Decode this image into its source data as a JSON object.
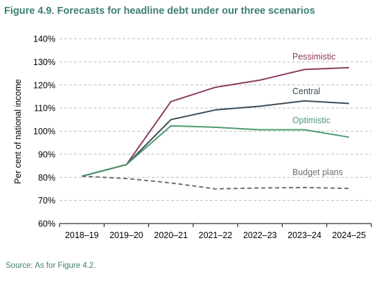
{
  "title": "Figure 4.9. Forecasts for headline debt under our three scenarios",
  "source": "Source: As for Figure 4.2.",
  "chart_data": {
    "type": "line",
    "ylabel": "Per cent of national income",
    "xlabel": "",
    "ylim": [
      60,
      140
    ],
    "yticks": [
      "60%",
      "70%",
      "80%",
      "90%",
      "100%",
      "110%",
      "120%",
      "130%",
      "140%"
    ],
    "ytick_values": [
      60,
      70,
      80,
      90,
      100,
      110,
      120,
      130,
      140
    ],
    "grid": true,
    "categories": [
      "2018–19",
      "2019–20",
      "2020–21",
      "2021–22",
      "2022–23",
      "2023–24",
      "2024–25"
    ],
    "series": [
      {
        "name": "Pessimistic",
        "color": "#8b3a62",
        "dashed": false,
        "values": [
          80.5,
          85.5,
          112.8,
          119.0,
          122.1,
          126.7,
          127.5
        ]
      },
      {
        "name": "Central",
        "color": "#3a4a56",
        "dashed": false,
        "values": [
          80.5,
          85.5,
          105.0,
          109.2,
          110.8,
          113.1,
          112.0
        ]
      },
      {
        "name": "Optimistic",
        "color": "#4d9a6e",
        "dashed": false,
        "values": [
          80.5,
          85.5,
          102.3,
          101.7,
          100.6,
          100.6,
          97.4
        ]
      },
      {
        "name": "Budget plans",
        "color": "#6e6e6e",
        "dashed": true,
        "values": [
          80.5,
          79.5,
          77.6,
          75.0,
          75.4,
          75.6,
          75.2
        ]
      }
    ]
  }
}
